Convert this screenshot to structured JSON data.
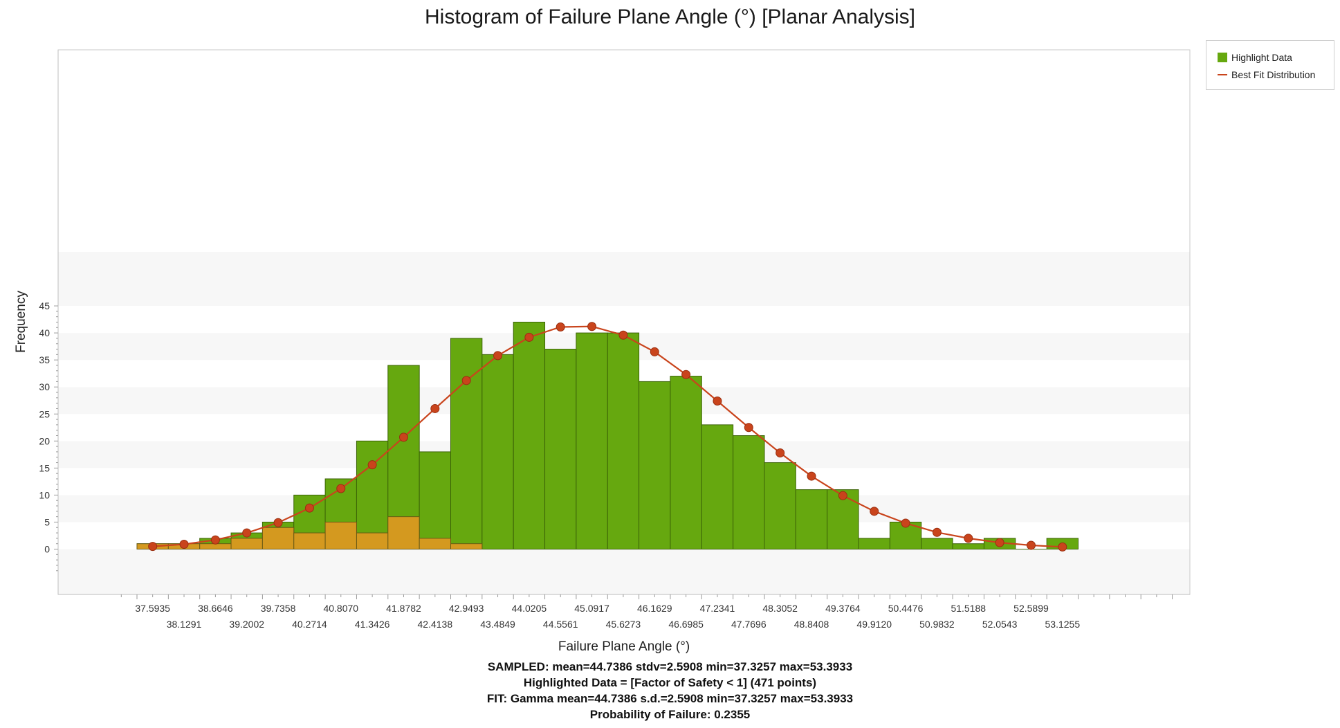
{
  "chart_data": {
    "type": "bar",
    "title": "Histogram of Failure Plane Angle (°) [Planar Analysis]",
    "xlabel": "Failure Plane Angle (°)",
    "ylabel": "Frequency",
    "ylim": [
      -4,
      45
    ],
    "yticks": [
      0,
      5,
      10,
      15,
      20,
      25,
      30,
      35,
      40,
      45
    ],
    "grid": "alternating horizontal bands",
    "legend_position": "top-right (outside plot)",
    "xtick_labels": [
      "37.5935",
      "38.1291",
      "38.6646",
      "39.2002",
      "39.7358",
      "40.2714",
      "40.8070",
      "41.3426",
      "41.8782",
      "42.4138",
      "42.9493",
      "43.4849",
      "44.0205",
      "44.5561",
      "45.0917",
      "45.6273",
      "46.1629",
      "46.6985",
      "47.2341",
      "47.7696",
      "48.3052",
      "48.8408",
      "49.3764",
      "49.9120",
      "50.4476",
      "50.9832",
      "51.5188",
      "52.0543",
      "52.5899",
      "53.1255"
    ],
    "series": [
      {
        "name": "Highlight Data",
        "color": "#66a80f",
        "values": [
          1,
          1,
          2,
          3,
          5,
          10,
          13,
          20,
          34,
          18,
          39,
          36,
          42,
          37,
          40,
          40,
          31,
          32,
          23,
          21,
          16,
          11,
          11,
          2,
          5,
          2,
          1,
          2,
          0,
          2
        ]
      },
      {
        "name": "",
        "color": "#d4991f",
        "values": [
          1,
          1,
          1,
          2,
          4,
          3,
          5,
          3,
          6,
          2,
          1,
          0,
          0,
          0,
          0,
          0,
          0,
          0,
          0,
          0,
          0,
          0,
          0,
          0,
          0,
          0,
          0,
          0,
          0,
          0
        ]
      },
      {
        "name": "Best Fit Distribution",
        "color": "#c9441c",
        "type": "line",
        "values": [
          0.5,
          0.9,
          1.7,
          3.0,
          4.9,
          7.6,
          11.2,
          15.6,
          20.7,
          26.0,
          31.2,
          35.8,
          39.2,
          41.1,
          41.2,
          39.6,
          36.5,
          32.3,
          27.4,
          22.5,
          17.8,
          13.5,
          9.9,
          7.0,
          4.8,
          3.1,
          2.0,
          1.2,
          0.7,
          0.4
        ]
      }
    ]
  },
  "legend": {
    "highlight_label": "Highlight Data",
    "fit_label": "Best Fit Distribution"
  },
  "stats": {
    "sampled": "SAMPLED: mean=44.7386 stdv=2.5908 min=37.3257 max=53.3933",
    "highlighted": "Highlighted Data = [Factor of Safety < 1] (471 points)",
    "fit": "FIT: Gamma mean=44.7386 s.d.=2.5908 min=37.3257 max=53.3933",
    "pof": "Probability of Failure: 0.2355"
  }
}
